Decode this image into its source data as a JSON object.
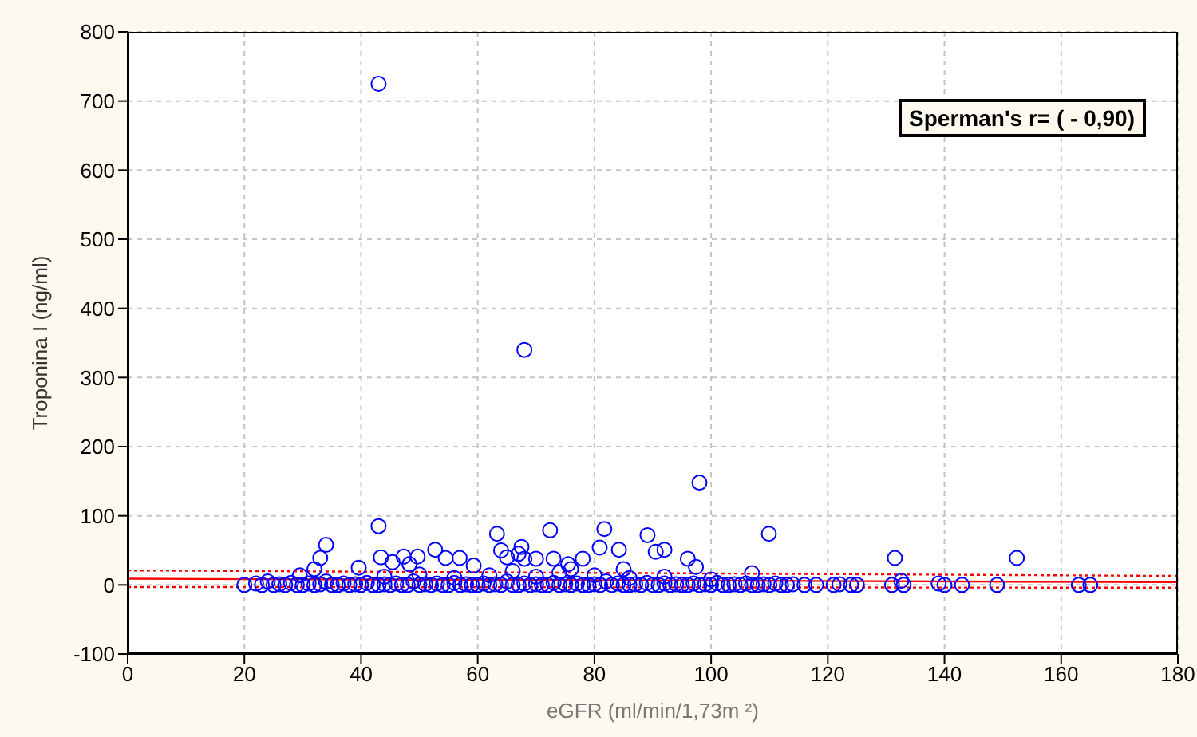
{
  "chart_data": {
    "type": "scatter",
    "xlabel": "eGFR (ml/min/1,73m ²)",
    "ylabel": "Troponina I (ng/ml)",
    "annotations": [
      "Sperman's r= ( - 0,90)"
    ],
    "xlim": [
      0,
      180
    ],
    "xticks": [
      0,
      20,
      40,
      60,
      80,
      100,
      120,
      140,
      160,
      180
    ],
    "ylim": [
      -100,
      800
    ],
    "yticks": [
      -100,
      0,
      100,
      200,
      300,
      400,
      500,
      600,
      700,
      800
    ],
    "grid": true,
    "marker": "circle",
    "series": [
      {
        "type": "scatter",
        "color": "#0000ff",
        "x": [
          43,
          68,
          98,
          43,
          34,
          33,
          32,
          29.5,
          39.6,
          43.4,
          45.4,
          47.3,
          48.3,
          49.7,
          52.7,
          54.5,
          56.9,
          59.3,
          63.3,
          64,
          65,
          67,
          67.5,
          68,
          72.4,
          81.7,
          80.9,
          84.2,
          89.1,
          90.5,
          92,
          96,
          97.4,
          109.9,
          75.5,
          76,
          70,
          73,
          78,
          85,
          107,
          131.5,
          152.4,
          132.6,
          44,
          50,
          56,
          62,
          66,
          70,
          74,
          80,
          86,
          92,
          100,
          20,
          22,
          23,
          24,
          25,
          26,
          27,
          28,
          29,
          30,
          31,
          32,
          33,
          34,
          35,
          36,
          37,
          38,
          39,
          40,
          41,
          42,
          43,
          44,
          45,
          46,
          47,
          48,
          49,
          50,
          51,
          52,
          53,
          54,
          55,
          56,
          57,
          58,
          59,
          60,
          61,
          62,
          63,
          64,
          65,
          66,
          67,
          68,
          69,
          70,
          71,
          72,
          73,
          74,
          75,
          76,
          77,
          78,
          79,
          80,
          81,
          82,
          83,
          84,
          85,
          86,
          87,
          88,
          89,
          90,
          91,
          92,
          93,
          94,
          95,
          96,
          97,
          98,
          99,
          100,
          101,
          102,
          103,
          104,
          105,
          106,
          107,
          108,
          109,
          110,
          111,
          112,
          113,
          114,
          116,
          118,
          121,
          122,
          124,
          125,
          131,
          133,
          139,
          140,
          143,
          149,
          163,
          165
        ],
        "values": [
          725,
          340,
          148,
          85,
          58,
          39,
          23,
          14,
          25,
          40,
          33,
          41,
          30,
          41,
          51,
          39,
          39,
          28,
          74,
          50,
          40,
          45,
          55,
          38,
          79,
          81,
          54,
          51,
          72,
          48,
          51,
          38,
          26,
          74,
          30,
          23,
          38,
          38,
          38,
          23,
          17,
          39,
          39,
          6,
          12,
          15,
          10,
          14,
          20,
          12,
          18,
          14,
          10,
          12,
          8,
          0,
          2,
          0,
          5,
          0,
          1,
          0,
          3,
          0,
          0,
          2,
          0,
          1,
          5,
          0,
          0,
          2,
          0,
          1,
          0,
          3,
          0,
          0,
          1,
          0,
          2,
          0,
          0,
          5,
          0,
          1,
          0,
          2,
          0,
          0,
          3,
          0,
          1,
          0,
          0,
          2,
          0,
          1,
          0,
          5,
          0,
          0,
          2,
          0,
          1,
          0,
          0,
          3,
          0,
          1,
          0,
          2,
          0,
          0,
          1,
          0,
          5,
          0,
          2,
          0,
          0,
          1,
          0,
          3,
          0,
          0,
          2,
          0,
          1,
          0,
          0,
          2,
          0,
          1,
          0,
          3,
          0,
          0,
          1,
          0,
          2,
          0,
          0,
          1,
          0,
          2,
          0,
          0,
          1,
          0,
          0,
          0,
          1,
          0,
          0,
          0,
          0,
          2,
          0,
          0,
          0,
          0,
          0
        ]
      },
      {
        "type": "line",
        "color": "#ff0000",
        "x": [
          0,
          180
        ],
        "values": [
          21,
          13
        ],
        "line_style": "dotted",
        "marker": "none"
      },
      {
        "type": "line",
        "color": "#ff0000",
        "x": [
          0,
          180
        ],
        "values": [
          -3,
          -4
        ],
        "line_style": "dotted",
        "marker": "none"
      },
      {
        "type": "line",
        "color": "#ff0000",
        "x": [
          0,
          180
        ],
        "values": [
          9,
          4
        ],
        "line_style": "solid",
        "marker": "none"
      }
    ]
  }
}
